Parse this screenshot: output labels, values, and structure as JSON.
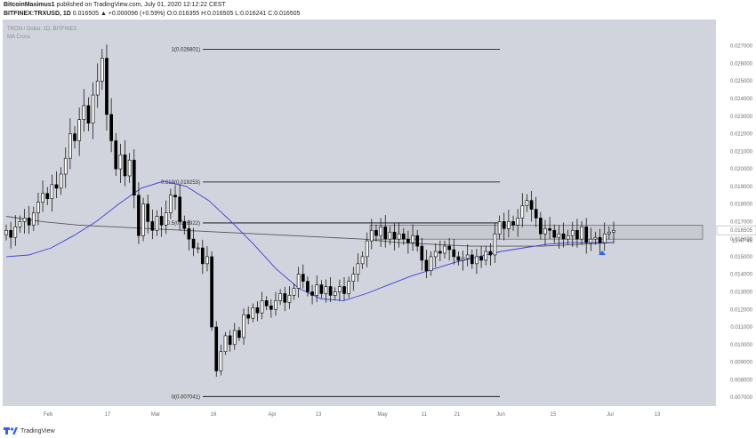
{
  "header": {
    "author": "BitcoinMaximus1",
    "published_text": " published on TradingView.com, July 01, 2020 12:12:22 CEST",
    "symbol": "BITFINEX:TRXUSD, 1D",
    "ohlc": "0.016505 ▲ +0.000096 (+0.59%) O:0.016355 H:0.016505 L:0.016241 C:0.016505"
  },
  "footer": {
    "brand": "TradingView"
  },
  "colors": {
    "plot_bg": "#d1d4dc",
    "axis_bg": "#ffffff",
    "up_candle": "#ffffff",
    "down_candle": "#000000",
    "ma_fast": "#3f3fd8",
    "ma_slow": "#555555",
    "fib_line": "#000000",
    "zone": "#c8cad1",
    "marker": "#2962ff"
  },
  "chart_data": {
    "type": "candlestick",
    "legend": [
      "TRON / Dollar, 1D, BITFINEX",
      "MA Cross"
    ],
    "ylim": [
      0.0065,
      0.0285
    ],
    "y_ticks": [
      "0.027000",
      "0.026000",
      "0.025000",
      "0.024000",
      "0.023000",
      "0.022000",
      "0.021000",
      "0.020000",
      "0.019000",
      "0.018000",
      "0.017000",
      "0.016000",
      "0.015000",
      "0.014000",
      "0.013000",
      "0.012000",
      "0.011000",
      "0.010000",
      "0.009000",
      "0.008000",
      "0.007000"
    ],
    "x_ticks": [
      "Feb",
      "17",
      "Mar",
      "16",
      "Apr",
      "13",
      "May",
      "11",
      "21",
      "Jun",
      "15",
      "Jul",
      "13"
    ],
    "price_label": "0.016505",
    "countdown_label": "13:47:46",
    "fib_levels": [
      {
        "label": "1(0.026801)",
        "value": 0.026801
      },
      {
        "label": "0.618(0.019253)",
        "value": 0.019253
      },
      {
        "label": "0.5(0.016922)",
        "value": 0.016922
      },
      {
        "label": "0(0.007041)",
        "value": 0.007041
      }
    ],
    "resistance_zone": [
      0.016,
      0.0168
    ],
    "candles_close": [
      0.0165,
      0.0161,
      0.0167,
      0.017,
      0.0172,
      0.0168,
      0.0175,
      0.0181,
      0.0186,
      0.0183,
      0.0191,
      0.0189,
      0.0197,
      0.0206,
      0.022,
      0.0216,
      0.0228,
      0.0236,
      0.0226,
      0.0242,
      0.025,
      0.0263,
      0.0231,
      0.0216,
      0.02,
      0.0208,
      0.0196,
      0.0205,
      0.0185,
      0.0162,
      0.018,
      0.017,
      0.0165,
      0.0173,
      0.0168,
      0.0175,
      0.0185,
      0.0184,
      0.017,
      0.0166,
      0.016,
      0.0155,
      0.0155,
      0.0146,
      0.015,
      0.011,
      0.0085,
      0.0096,
      0.0105,
      0.01,
      0.0108,
      0.0104,
      0.0117,
      0.0115,
      0.0121,
      0.0118,
      0.0125,
      0.0122,
      0.012,
      0.0125,
      0.0129,
      0.0124,
      0.0128,
      0.0132,
      0.014,
      0.0136,
      0.013,
      0.0128,
      0.0134,
      0.0129,
      0.0133,
      0.0128,
      0.013,
      0.0133,
      0.0129,
      0.0136,
      0.014,
      0.0146,
      0.015,
      0.0159,
      0.0165,
      0.0162,
      0.0167,
      0.016,
      0.0164,
      0.016,
      0.0163,
      0.016,
      0.0158,
      0.0162,
      0.0156,
      0.0148,
      0.0142,
      0.015,
      0.0153,
      0.0152,
      0.0156,
      0.0154,
      0.015,
      0.0148,
      0.0149,
      0.0151,
      0.0146,
      0.015,
      0.0148,
      0.0153,
      0.0151,
      0.0163,
      0.017,
      0.0166,
      0.017,
      0.0168,
      0.0172,
      0.0179,
      0.0182,
      0.0177,
      0.0172,
      0.0163,
      0.0166,
      0.0165,
      0.0161,
      0.0163,
      0.016,
      0.0162,
      0.0165,
      0.016,
      0.0167,
      0.0158,
      0.016,
      0.0161,
      0.0158,
      0.0163,
      0.0164,
      0.0165
    ],
    "ma_fast": [
      0.015,
      0.0151,
      0.0155,
      0.0162,
      0.017,
      0.018,
      0.0189,
      0.0193,
      0.019,
      0.0182,
      0.017,
      0.0157,
      0.0143,
      0.0132,
      0.0126,
      0.0125,
      0.0129,
      0.0134,
      0.0139,
      0.0143,
      0.0147,
      0.015,
      0.0153,
      0.0155,
      0.0157,
      0.0158,
      0.0158,
      0.0158
    ],
    "ma_slow": [
      0.0173,
      0.017,
      0.0168,
      0.0167,
      0.0166,
      0.0165,
      0.0164,
      0.0163,
      0.0162,
      0.0161,
      0.016,
      0.0158,
      0.0157,
      0.0156,
      0.0156,
      0.0156,
      0.0157,
      0.0158
    ]
  }
}
